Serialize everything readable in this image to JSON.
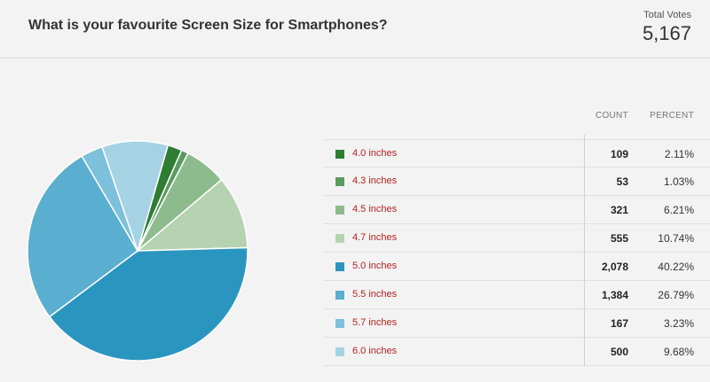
{
  "poll": {
    "title": "What is your favourite Screen Size for Smartphones?",
    "total_votes_label": "Total Votes",
    "total_votes": "5,167"
  },
  "table": {
    "count_header": "COUNT",
    "percent_header": "PERCENT"
  },
  "chart_data": {
    "type": "pie",
    "categories": [
      "4.0 inches",
      "4.3 inches",
      "4.5 inches",
      "4.7 inches",
      "5.0 inches",
      "5.5 inches",
      "5.7 inches",
      "6.0 inches"
    ],
    "counts": [
      "109",
      "53",
      "321",
      "555",
      "2,078",
      "1,384",
      "167",
      "500"
    ],
    "percents": [
      "2.11%",
      "1.03%",
      "6.21%",
      "10.74%",
      "40.22%",
      "26.79%",
      "3.23%",
      "9.68%"
    ],
    "values": [
      2.11,
      1.03,
      6.21,
      10.74,
      40.22,
      26.79,
      3.23,
      9.68
    ],
    "colors": [
      "#2e7d32",
      "#5a9a5e",
      "#8dbb8d",
      "#b5d3b0",
      "#2a96bf",
      "#5aaed0",
      "#7cc0db",
      "#a6d3e4"
    ],
    "legend_placement": "right"
  }
}
